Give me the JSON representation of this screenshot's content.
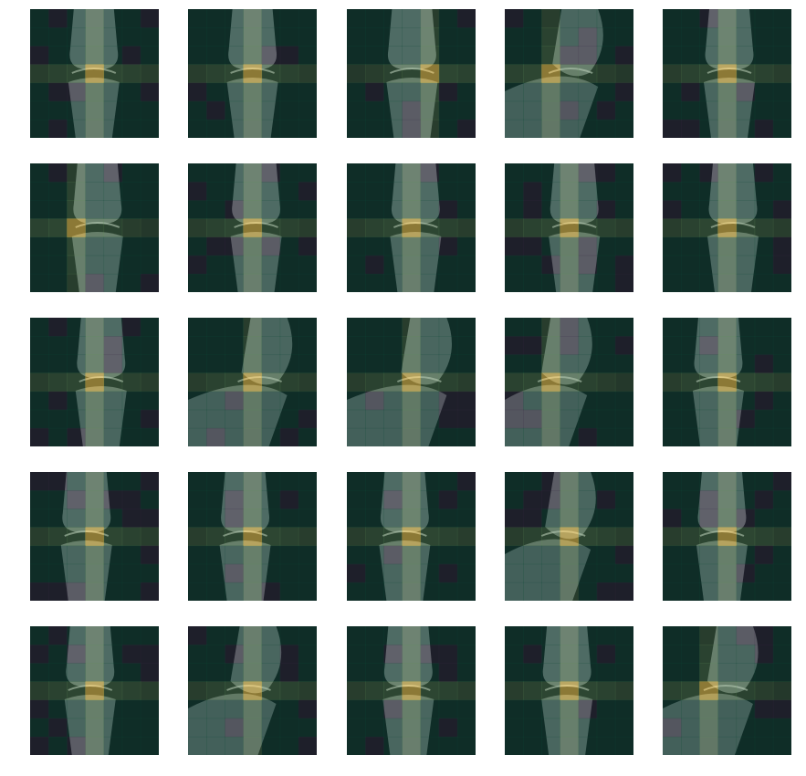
{
  "figure": {
    "rows": 5,
    "cols": 5,
    "description_type": "heatmap-overlay-grid",
    "heatmap_grid": 7,
    "colors": {
      "background": "#ffffff",
      "xray_dark": "#101a1c",
      "bone": "#c9d3d2",
      "hot": "#f2c94c",
      "warm": "#5f8f57",
      "cool": "#0f4d3a",
      "cold": "#3a2a45"
    },
    "tiles": [
      {
        "view": "frontal",
        "hot_row": 3,
        "hot_col": 3
      },
      {
        "view": "frontal",
        "hot_row": 3,
        "hot_col": 3
      },
      {
        "view": "frontal",
        "hot_row": 3,
        "hot_col": 4
      },
      {
        "view": "lateral",
        "hot_row": 3,
        "hot_col": 2
      },
      {
        "view": "frontal",
        "hot_row": 3,
        "hot_col": 3
      },
      {
        "view": "frontal",
        "hot_row": 3,
        "hot_col": 2
      },
      {
        "view": "frontal",
        "hot_row": 3,
        "hot_col": 3
      },
      {
        "view": "frontal",
        "hot_row": 3,
        "hot_col": 3
      },
      {
        "view": "frontal",
        "hot_row": 3,
        "hot_col": 3
      },
      {
        "view": "frontal",
        "hot_row": 3,
        "hot_col": 3
      },
      {
        "view": "frontal",
        "hot_row": 3,
        "hot_col": 3
      },
      {
        "view": "lateral",
        "hot_row": 3,
        "hot_col": 3
      },
      {
        "view": "lateral",
        "hot_row": 3,
        "hot_col": 3
      },
      {
        "view": "lateral",
        "hot_row": 3,
        "hot_col": 2
      },
      {
        "view": "frontal",
        "hot_row": 3,
        "hot_col": 3
      },
      {
        "view": "frontal",
        "hot_row": 3,
        "hot_col": 3
      },
      {
        "view": "frontal",
        "hot_row": 3,
        "hot_col": 3
      },
      {
        "view": "frontal",
        "hot_row": 3,
        "hot_col": 3
      },
      {
        "view": "lateral",
        "hot_row": 3,
        "hot_col": 3
      },
      {
        "view": "frontal",
        "hot_row": 3,
        "hot_col": 3
      },
      {
        "view": "frontal",
        "hot_row": 3,
        "hot_col": 3
      },
      {
        "view": "lateral",
        "hot_row": 3,
        "hot_col": 3
      },
      {
        "view": "frontal",
        "hot_row": 3,
        "hot_col": 3
      },
      {
        "view": "frontal",
        "hot_row": 3,
        "hot_col": 3
      },
      {
        "view": "lateral",
        "hot_row": 3,
        "hot_col": 2
      }
    ]
  }
}
